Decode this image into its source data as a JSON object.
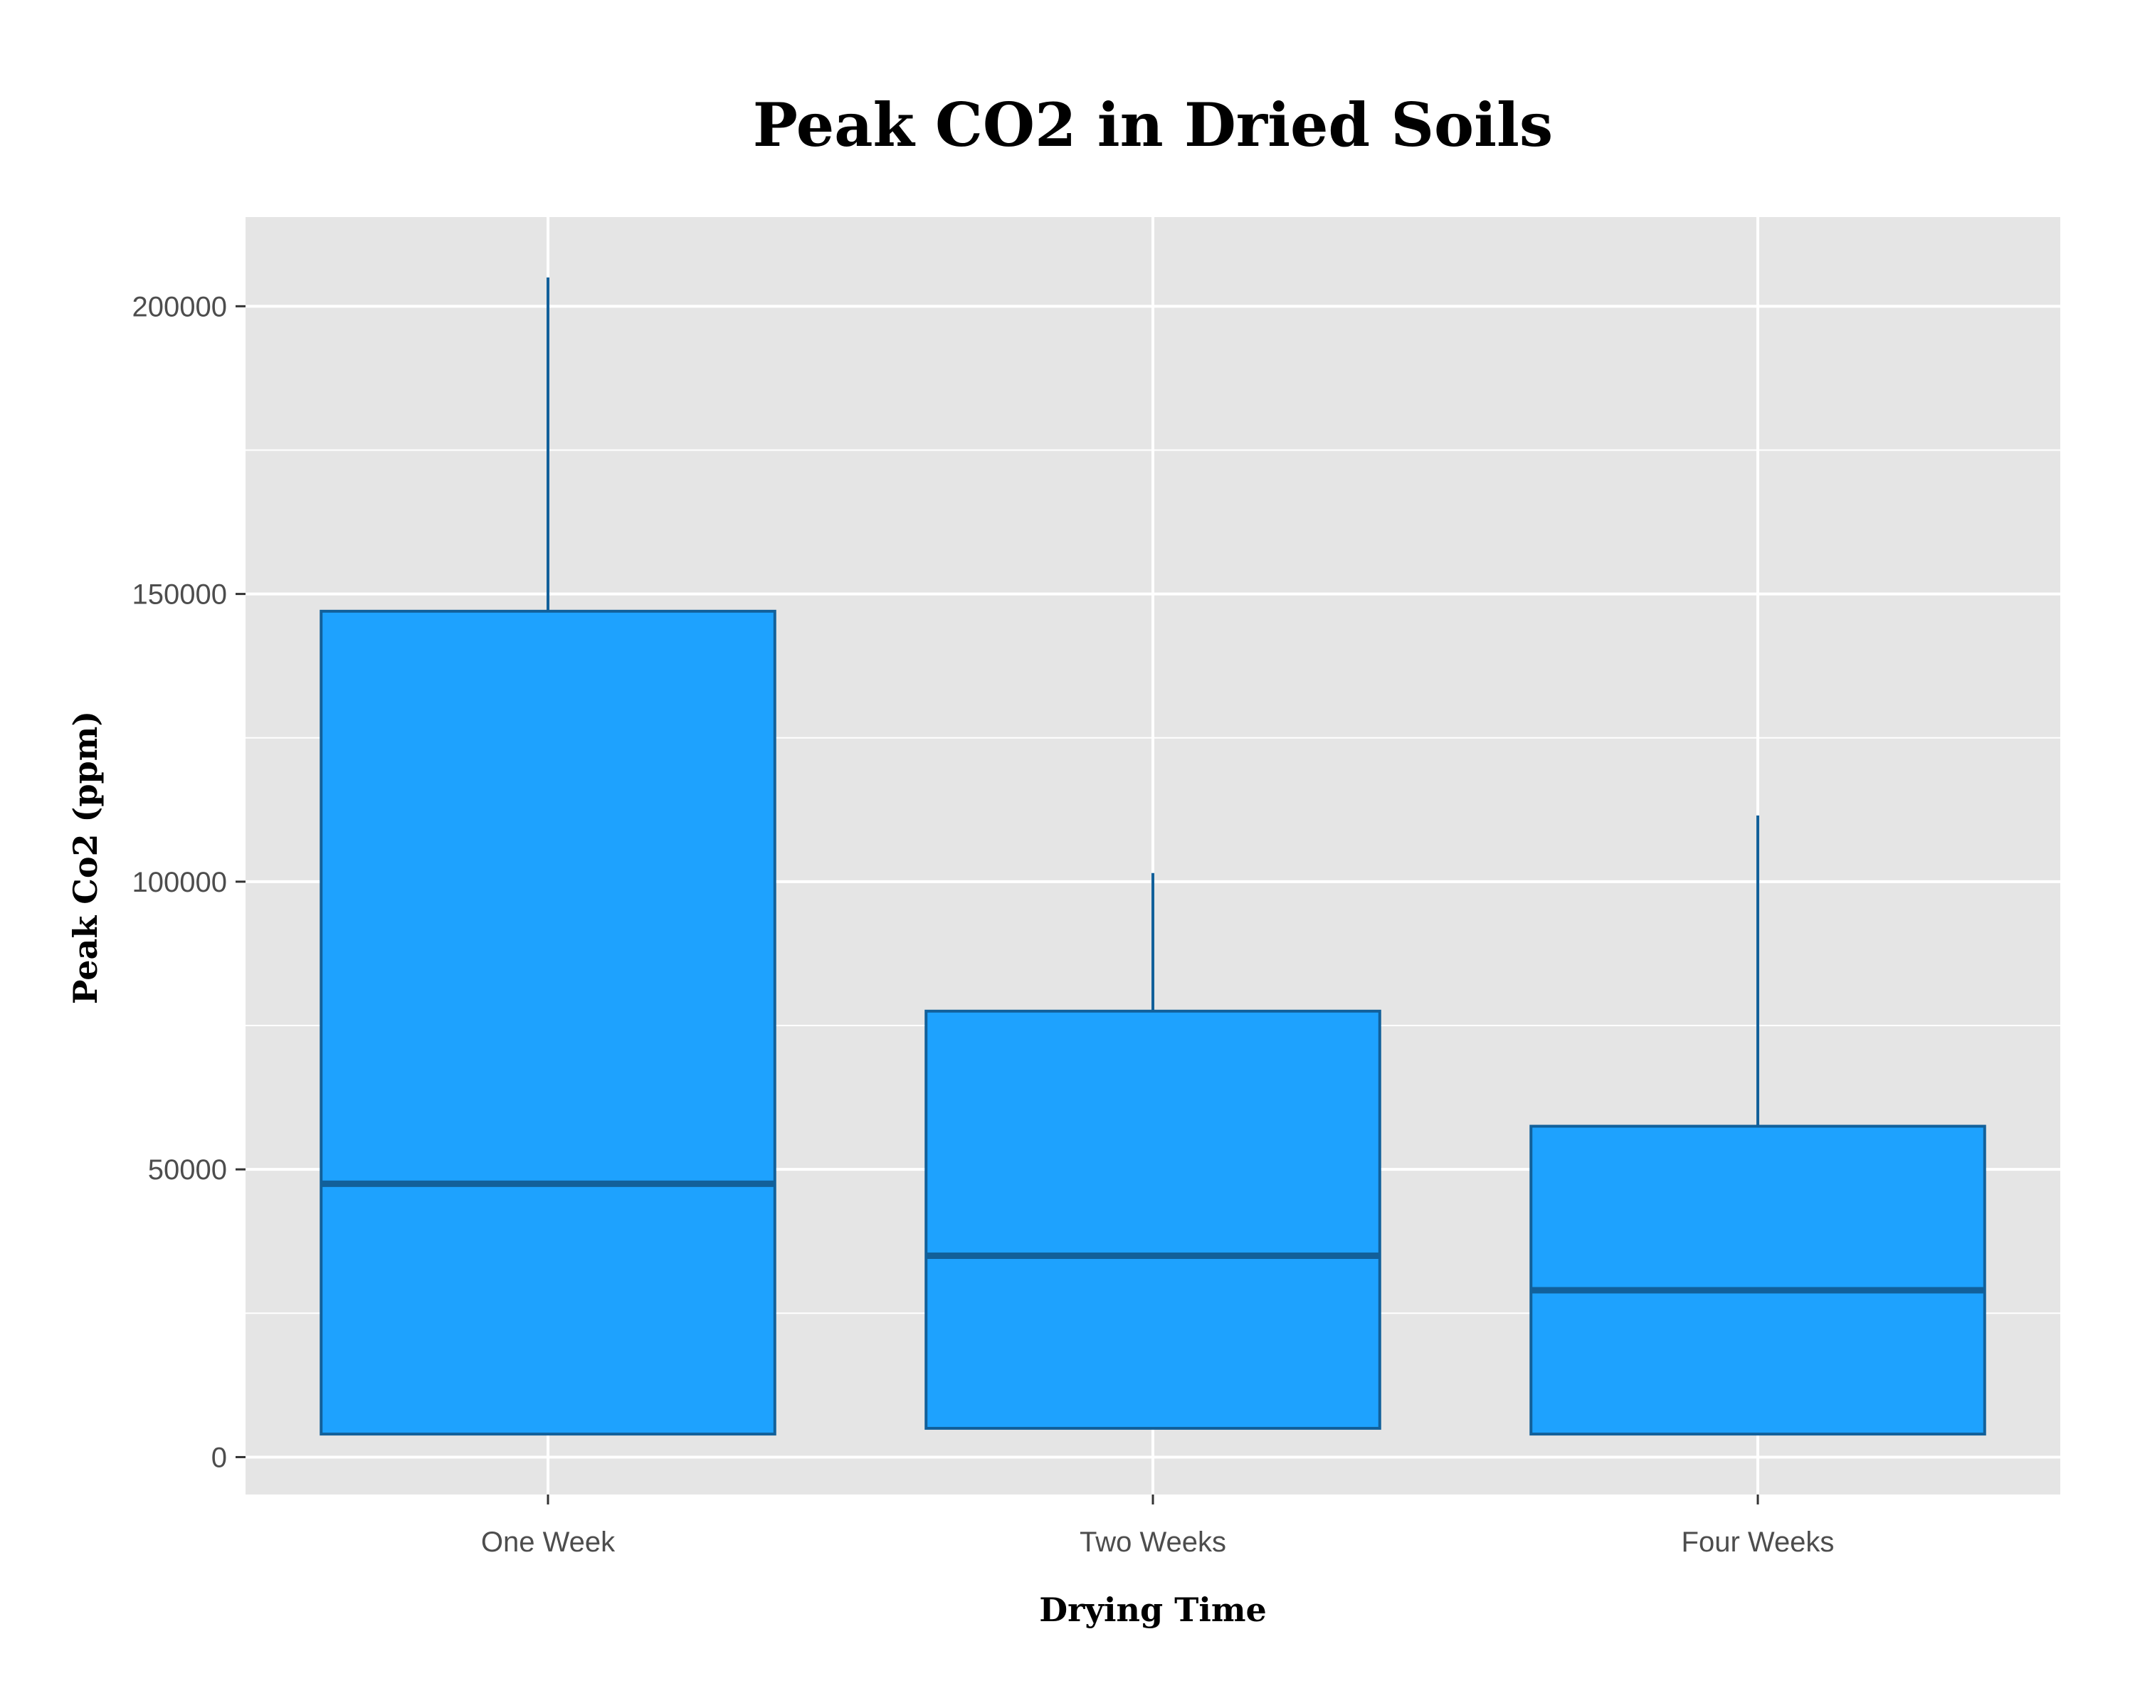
{
  "colors": {
    "panel_background": "#e5e5e5",
    "gridline": "#ffffff",
    "box_fill": "#1ea2fe",
    "box_outline": "#12609a",
    "median_line": "#12609a",
    "tick_mark": "#333333"
  },
  "chart_data": {
    "type": "box",
    "title": "Peak CO2 in Dried Soils",
    "xlabel": "Drying Time",
    "ylabel": "Peak Co2 (ppm)",
    "ylim": [
      -6500,
      215500
    ],
    "y_major_ticks": [
      0,
      50000,
      100000,
      150000,
      200000
    ],
    "y_tick_labels": [
      "0",
      "50000",
      "100000",
      "150000",
      "200000"
    ],
    "y_minor_gridlines": [
      25000,
      75000,
      125000,
      175000
    ],
    "grid": true,
    "legend": "none",
    "categories": [
      "One Week",
      "Two Weeks",
      "Four Weeks"
    ],
    "boxes": [
      {
        "category": "One Week",
        "min": 4000,
        "q1": 4000,
        "median": 47500,
        "q3": 147000,
        "max": 205000
      },
      {
        "category": "Two Weeks",
        "min": 5000,
        "q1": 5000,
        "median": 35000,
        "q3": 77500,
        "max": 101500
      },
      {
        "category": "Four Weeks",
        "min": 4000,
        "q1": 4000,
        "median": 29000,
        "q3": 57500,
        "max": 111500
      }
    ]
  }
}
